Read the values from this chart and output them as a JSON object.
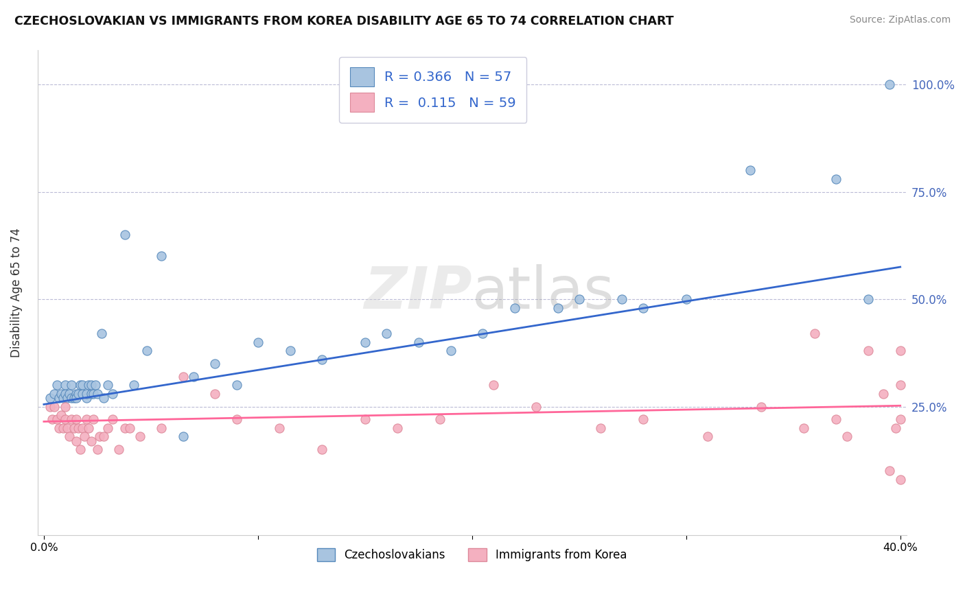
{
  "title": "CZECHOSLOVAKIAN VS IMMIGRANTS FROM KOREA DISABILITY AGE 65 TO 74 CORRELATION CHART",
  "source": "Source: ZipAtlas.com",
  "ylabel": "Disability Age 65 to 74",
  "xlim": [
    -0.003,
    0.403
  ],
  "ylim": [
    -0.05,
    1.08
  ],
  "xtick_labels": [
    "0.0%",
    "",
    "",
    "",
    "40.0%"
  ],
  "xtick_vals": [
    0.0,
    0.1,
    0.2,
    0.3,
    0.4
  ],
  "ytick_vals_right": [
    0.25,
    0.5,
    0.75,
    1.0
  ],
  "ytick_labels_right": [
    "25.0%",
    "50.0%",
    "75.0%",
    "100.0%"
  ],
  "blue_fill": "#A8C4E0",
  "blue_edge": "#5588BB",
  "pink_fill": "#F4B0C0",
  "pink_edge": "#DD8899",
  "blue_line_color": "#3366CC",
  "pink_line_color": "#FF6699",
  "right_axis_color": "#4466BB",
  "R_blue": 0.366,
  "N_blue": 57,
  "R_pink": 0.115,
  "N_pink": 59,
  "grid_color": "#AAAACC",
  "background_color": "#FFFFFF",
  "blue_scatter_x": [
    0.003,
    0.005,
    0.006,
    0.007,
    0.008,
    0.009,
    0.01,
    0.01,
    0.011,
    0.012,
    0.013,
    0.013,
    0.014,
    0.015,
    0.015,
    0.016,
    0.017,
    0.018,
    0.018,
    0.02,
    0.02,
    0.021,
    0.022,
    0.022,
    0.023,
    0.024,
    0.025,
    0.027,
    0.028,
    0.03,
    0.032,
    0.038,
    0.042,
    0.048,
    0.055,
    0.065,
    0.07,
    0.08,
    0.09,
    0.1,
    0.115,
    0.13,
    0.15,
    0.16,
    0.175,
    0.19,
    0.205,
    0.22,
    0.24,
    0.25,
    0.27,
    0.28,
    0.3,
    0.33,
    0.37,
    0.385,
    0.395
  ],
  "blue_scatter_y": [
    0.27,
    0.28,
    0.3,
    0.27,
    0.28,
    0.27,
    0.28,
    0.3,
    0.27,
    0.28,
    0.27,
    0.3,
    0.27,
    0.28,
    0.27,
    0.28,
    0.3,
    0.28,
    0.3,
    0.27,
    0.28,
    0.3,
    0.28,
    0.3,
    0.28,
    0.3,
    0.28,
    0.42,
    0.27,
    0.3,
    0.28,
    0.65,
    0.3,
    0.38,
    0.6,
    0.18,
    0.32,
    0.35,
    0.3,
    0.4,
    0.38,
    0.36,
    0.4,
    0.42,
    0.4,
    0.38,
    0.42,
    0.48,
    0.48,
    0.5,
    0.5,
    0.48,
    0.5,
    0.8,
    0.78,
    0.5,
    1.0
  ],
  "pink_scatter_x": [
    0.003,
    0.004,
    0.005,
    0.006,
    0.007,
    0.008,
    0.009,
    0.01,
    0.01,
    0.011,
    0.012,
    0.013,
    0.014,
    0.015,
    0.015,
    0.016,
    0.017,
    0.018,
    0.019,
    0.02,
    0.021,
    0.022,
    0.023,
    0.025,
    0.026,
    0.028,
    0.03,
    0.032,
    0.035,
    0.038,
    0.04,
    0.045,
    0.055,
    0.065,
    0.08,
    0.09,
    0.11,
    0.13,
    0.15,
    0.165,
    0.185,
    0.21,
    0.23,
    0.26,
    0.28,
    0.31,
    0.335,
    0.355,
    0.36,
    0.37,
    0.375,
    0.385,
    0.392,
    0.395,
    0.398,
    0.4,
    0.4,
    0.4,
    0.4
  ],
  "pink_scatter_y": [
    0.25,
    0.22,
    0.25,
    0.22,
    0.2,
    0.23,
    0.2,
    0.22,
    0.25,
    0.2,
    0.18,
    0.22,
    0.2,
    0.17,
    0.22,
    0.2,
    0.15,
    0.2,
    0.18,
    0.22,
    0.2,
    0.17,
    0.22,
    0.15,
    0.18,
    0.18,
    0.2,
    0.22,
    0.15,
    0.2,
    0.2,
    0.18,
    0.2,
    0.32,
    0.28,
    0.22,
    0.2,
    0.15,
    0.22,
    0.2,
    0.22,
    0.3,
    0.25,
    0.2,
    0.22,
    0.18,
    0.25,
    0.2,
    0.42,
    0.22,
    0.18,
    0.38,
    0.28,
    0.1,
    0.2,
    0.08,
    0.3,
    0.22,
    0.38
  ],
  "blue_trendline_x": [
    0.0,
    0.4
  ],
  "blue_trendline_y": [
    0.255,
    0.575
  ],
  "pink_trendline_x": [
    0.0,
    0.4
  ],
  "pink_trendline_y": [
    0.215,
    0.252
  ]
}
